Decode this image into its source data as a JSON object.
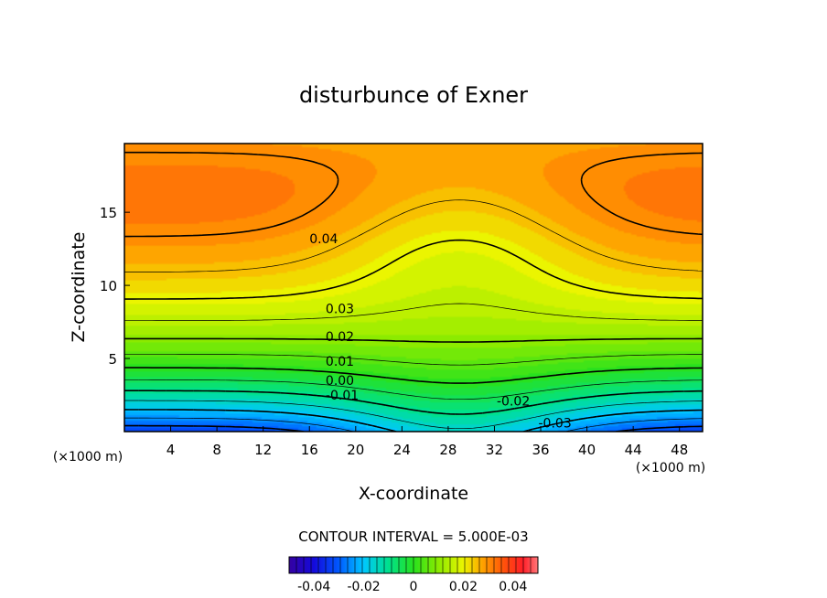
{
  "chart_data": {
    "type": "contour",
    "title": "disturbunce of Exner",
    "xlabel": "X-coordinate",
    "ylabel": "Z-coordinate",
    "x_unit_label": "(×1000 m)",
    "x_ticks": [
      4,
      8,
      12,
      16,
      20,
      24,
      28,
      32,
      36,
      40,
      44,
      48
    ],
    "y_ticks": [
      5,
      10,
      15
    ],
    "xlim": [
      0,
      50
    ],
    "ylim": [
      0,
      19.7
    ],
    "contour_interval_text": "CONTOUR INTERVAL = 5.000E-03",
    "contour_labels": [
      {
        "text": "0.04",
        "x": 16,
        "z": 13.2
      },
      {
        "text": "0.03",
        "x": 17.4,
        "z": 8.4
      },
      {
        "text": "0.02",
        "x": 17.4,
        "z": 6.5
      },
      {
        "text": "0.01",
        "x": 17.4,
        "z": 4.8
      },
      {
        "text": "0.00",
        "x": 17.4,
        "z": 3.5
      },
      {
        "text": "-0.01",
        "x": 17.4,
        "z": 2.5
      },
      {
        "text": "-0.02",
        "x": 32.2,
        "z": 2.1
      },
      {
        "text": "-0.03",
        "x": 35.8,
        "z": 0.6
      }
    ],
    "colorbar": {
      "ticks": [
        "-0.04",
        "-0.02",
        "0",
        "0.02",
        "0.04"
      ],
      "range": [
        -0.05,
        0.05
      ]
    },
    "colors": {
      "low": "#1a10d8",
      "mid": "#20e020",
      "high": "#ff2a2a",
      "line": "#000000"
    }
  }
}
